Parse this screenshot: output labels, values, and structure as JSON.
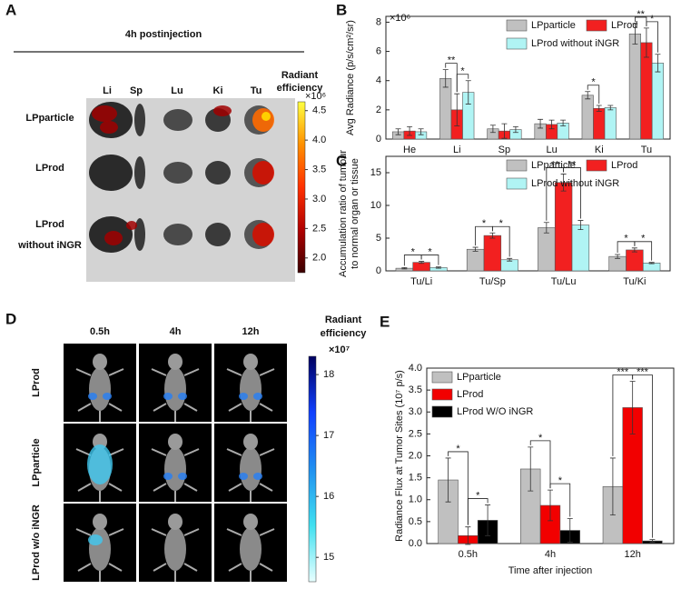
{
  "panel_a": {
    "letter": "A",
    "title": "4h postinjection",
    "columns": [
      "Li",
      "Sp",
      "Lu",
      "Ki",
      "Tu"
    ],
    "rows": [
      [
        "LPparticle"
      ],
      [
        "LProd"
      ],
      [
        "LProd",
        "without iNGR"
      ]
    ],
    "colorbar": {
      "title": [
        "Radiant",
        "efficiency"
      ],
      "multiplier": "×10⁶",
      "colors": [
        "#3a0000",
        "#b00000",
        "#ff3000",
        "#ff9000",
        "#ffff40"
      ],
      "lim": [
        1.75,
        4.65
      ],
      "ticks": [
        4.5,
        {
          "value": 4.0,
          "label": "4.0"
        },
        3.5,
        {
          "value": 3.0,
          "label": "3.0"
        },
        2.5,
        {
          "value": 2.0,
          "label": "2.0"
        }
      ]
    }
  },
  "chart_data": [
    {
      "type": "bar",
      "letter": "B",
      "ylabel": "Avg Radiance (p/s/cm²/sr)",
      "multiplier": "×10⁶",
      "categories": [
        "He",
        "Li",
        "Sp",
        "Lu",
        "Ki",
        "Tu"
      ],
      "series": [
        {
          "name": "LPparticle",
          "color": "#c0c0c0",
          "values": [
            0.5,
            4.15,
            0.7,
            1.05,
            3.0,
            7.2
          ],
          "errors": [
            0.2,
            0.6,
            0.25,
            0.3,
            0.25,
            0.7
          ]
        },
        {
          "name": "LProd",
          "color": "#f22020",
          "values": [
            0.55,
            2.0,
            0.55,
            1.0,
            2.1,
            6.6
          ],
          "errors": [
            0.3,
            1.1,
            0.5,
            0.3,
            0.2,
            1.0
          ]
        },
        {
          "name": "LProd without iNGR",
          "color": "#b0f4f4",
          "values": [
            0.5,
            3.2,
            0.65,
            1.1,
            2.15,
            5.2
          ],
          "errors": [
            0.2,
            0.8,
            0.2,
            0.2,
            0.15,
            0.6
          ]
        }
      ],
      "ylim": [
        0,
        8.4
      ],
      "yticks": [
        0,
        2,
        4,
        6,
        8
      ],
      "legend": "upper right",
      "significance": [
        {
          "category": "Li",
          "between": [
            "LPparticle",
            "LProd"
          ],
          "label": "**"
        },
        {
          "category": "Li",
          "between": [
            "LProd",
            "LProd without iNGR"
          ],
          "label": "*"
        },
        {
          "category": "Ki",
          "between": [
            "LPparticle",
            "LProd"
          ],
          "label": "*"
        },
        {
          "category": "Tu",
          "between": [
            "LPparticle",
            "LProd"
          ],
          "label": "**"
        },
        {
          "category": "Tu",
          "between": [
            "LProd",
            "LProd without iNGR"
          ],
          "label": "*"
        }
      ]
    },
    {
      "type": "bar",
      "letter": "C",
      "ylabel": [
        "Accumulation ratio of tumour",
        "to normal organ or tissue"
      ],
      "categories": [
        "Tu/Li",
        "Tu/Sp",
        "Tu/Lu",
        "Tu/Ki"
      ],
      "series": [
        {
          "name": "LPparticle",
          "color": "#c0c0c0",
          "values": [
            0.4,
            3.3,
            6.6,
            2.2
          ],
          "errors": [
            0.1,
            0.3,
            0.8,
            0.3
          ]
        },
        {
          "name": "LProd",
          "color": "#f22020",
          "values": [
            1.3,
            5.4,
            13.5,
            3.2
          ],
          "errors": [
            0.15,
            0.4,
            1.3,
            0.3
          ]
        },
        {
          "name": "LProd without iNGR",
          "color": "#b0f4f4",
          "values": [
            0.5,
            1.7,
            7.0,
            1.2
          ],
          "errors": [
            0.1,
            0.2,
            0.7,
            0.1
          ]
        }
      ],
      "ylim": [
        0,
        17.5
      ],
      "yticks": [
        0,
        5,
        10,
        15
      ],
      "legend": "upper right",
      "significance": [
        {
          "category": "Tu/Li",
          "between": [
            "LPparticle",
            "LProd"
          ],
          "label": "*"
        },
        {
          "category": "Tu/Li",
          "between": [
            "LProd",
            "LProd without iNGR"
          ],
          "label": "*"
        },
        {
          "category": "Tu/Sp",
          "between": [
            "LPparticle",
            "LProd"
          ],
          "label": "*"
        },
        {
          "category": "Tu/Sp",
          "between": [
            "LProd",
            "LProd without iNGR"
          ],
          "label": "*"
        },
        {
          "category": "Tu/Lu",
          "between": [
            "LPparticle",
            "LProd"
          ],
          "label": "**"
        },
        {
          "category": "Tu/Lu",
          "between": [
            "LProd",
            "LProd without iNGR"
          ],
          "label": "**"
        },
        {
          "category": "Tu/Ki",
          "between": [
            "LPparticle",
            "LProd"
          ],
          "label": "*"
        },
        {
          "category": "Tu/Ki",
          "between": [
            "LProd",
            "LProd without iNGR"
          ],
          "label": "*"
        }
      ]
    },
    {
      "type": "bar",
      "letter": "E",
      "ylabel": "Radiance Flux at Tumor Sites (10⁷ p/s)",
      "xlabel": "Time after injection",
      "categories": [
        "0.5h",
        "4h",
        "12h"
      ],
      "series": [
        {
          "name": "LPparticle",
          "color": "#c0c0c0",
          "values": [
            1.45,
            1.7,
            1.3
          ],
          "errors": [
            0.5,
            0.5,
            0.65
          ]
        },
        {
          "name": "LProd",
          "color": "#f20000",
          "values": [
            0.18,
            0.87,
            3.1
          ],
          "errors": [
            0.2,
            0.35,
            0.6
          ]
        },
        {
          "name": "LProd W/O iNGR",
          "color": "#000000",
          "values": [
            0.53,
            0.3,
            0.06
          ],
          "errors": [
            0.35,
            0.27,
            0.03
          ]
        }
      ],
      "ylim": [
        0,
        4.0
      ],
      "yticks": [
        {
          "value": 0,
          "label": "0.0"
        },
        0.5,
        {
          "value": 1,
          "label": "1.0"
        },
        1.5,
        {
          "value": 2,
          "label": "2.0"
        },
        2.5,
        {
          "value": 3,
          "label": "3.0"
        },
        3.5,
        {
          "value": 4,
          "label": "4.0"
        }
      ],
      "legend": "upper left",
      "significance": [
        {
          "category": "0.5h",
          "between": [
            "LPparticle",
            "LProd"
          ],
          "label": "*"
        },
        {
          "category": "0.5h",
          "between": [
            "LProd",
            "LProd W/O iNGR"
          ],
          "label": "*"
        },
        {
          "category": "4h",
          "between": [
            "LPparticle",
            "LProd"
          ],
          "label": "*"
        },
        {
          "category": "4h",
          "between": [
            "LProd",
            "LProd W/O iNGR"
          ],
          "label": "*"
        },
        {
          "category": "12h",
          "between": [
            "LPparticle",
            "LProd"
          ],
          "label": "***"
        },
        {
          "category": "12h",
          "between": [
            "LProd",
            "LProd W/O iNGR"
          ],
          "label": "***"
        }
      ]
    }
  ],
  "panel_d": {
    "letter": "D",
    "columns": [
      "0.5h",
      "4h",
      "12h"
    ],
    "rows": [
      "LProd",
      "LPparticle",
      "LProd w/o iNGR"
    ],
    "colorbar": {
      "title": [
        "Radiant",
        "efficiency"
      ],
      "multiplier": "×10⁷",
      "colors": [
        "#e8ffff",
        "#40e0f0",
        "#2090f0",
        "#1040ff",
        "#000060"
      ],
      "lim": [
        14.6,
        18.3
      ],
      "ticks": [
        18,
        17,
        16,
        15
      ]
    }
  }
}
